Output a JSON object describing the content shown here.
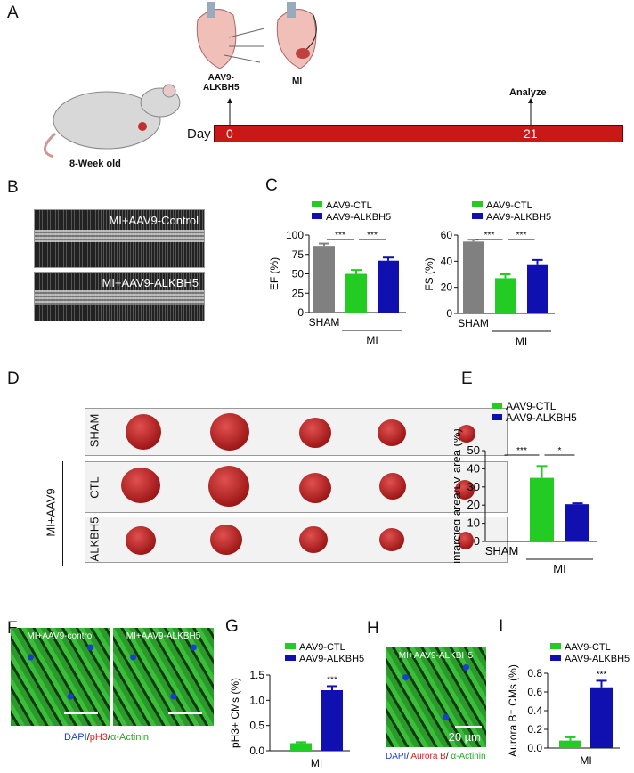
{
  "panels": {
    "A": "A",
    "B": "B",
    "C": "C",
    "D": "D",
    "E": "E",
    "F": "F",
    "G": "G",
    "H": "H",
    "I": "I"
  },
  "panelA": {
    "mouse_label": "8-Week old",
    "injection_label": "AAV9-\nALKBH5",
    "mi_label": "MI",
    "day_label": "Day",
    "day0": "0",
    "day21": "21",
    "analyze": "Analyze",
    "timeline_color": "#c81818"
  },
  "panelB": {
    "top": "MI+AAV9-Control",
    "bottom": "MI+AAV9-ALKBH5"
  },
  "panelD": {
    "rows": [
      "SHAM",
      "CTL",
      "ALKBH5"
    ],
    "group": "MI+AAV9"
  },
  "panelF": {
    "left": "MI+AAV9-control",
    "right": "MI+AAV9-ALKBH5",
    "caption": [
      {
        "t": "DAPI",
        "c": "#1a3fd0"
      },
      {
        "t": "/",
        "c": "#111"
      },
      {
        "t": "pH3",
        "c": "#e02020"
      },
      {
        "t": "/",
        "c": "#111"
      },
      {
        "t": "α-Actinin",
        "c": "#20b020"
      }
    ]
  },
  "panelH": {
    "label": "MI+AAV9-ALKBH5",
    "scale": "20 µm",
    "caption": [
      {
        "t": "DAPI",
        "c": "#1a3fd0"
      },
      {
        "t": "/ ",
        "c": "#111"
      },
      {
        "t": "Aurora B",
        "c": "#e02020"
      },
      {
        "t": "/ ",
        "c": "#111"
      },
      {
        "t": "α-Actinin",
        "c": "#20b020"
      }
    ]
  },
  "colors": {
    "sham": "#808080",
    "ctl": "#22cc22",
    "alkbh5": "#1010b0"
  },
  "chart_data": [
    {
      "id": "EF",
      "type": "bar",
      "ylabel": "EF (%)",
      "ylim": [
        0,
        100
      ],
      "yticks": [
        0,
        25,
        50,
        75,
        100
      ],
      "categories": [
        "SHAM",
        "AAV9-CTL",
        "AAV9-ALKBH5"
      ],
      "values": [
        86,
        50,
        67
      ],
      "errors": [
        3,
        5,
        4
      ],
      "legend": [
        "AAV9-CTL",
        "AAV9-ALKBH5"
      ],
      "xlabels": {
        "sham": "SHAM",
        "group": "MI"
      },
      "sig": [
        "***",
        "***"
      ]
    },
    {
      "id": "FS",
      "type": "bar",
      "ylabel": "FS (%)",
      "ylim": [
        0,
        60
      ],
      "yticks": [
        0,
        20,
        40,
        60
      ],
      "categories": [
        "SHAM",
        "AAV9-CTL",
        "AAV9-ALKBH5"
      ],
      "values": [
        55,
        27,
        37
      ],
      "errors": [
        1.5,
        3,
        4
      ],
      "legend": [
        "AAV9-CTL",
        "AAV9-ALKBH5"
      ],
      "xlabels": {
        "sham": "SHAM",
        "group": "MI"
      },
      "sig": [
        "***",
        "***"
      ]
    },
    {
      "id": "E",
      "type": "bar",
      "ylabel": "infarcted area/LV area (%)",
      "ylim": [
        0,
        50
      ],
      "yticks": [
        0,
        10,
        20,
        30,
        40,
        50
      ],
      "categories": [
        "SHAM",
        "AAV9-CTL",
        "AAV9-ALKBH5"
      ],
      "values": [
        0,
        35,
        20.5
      ],
      "errors": [
        0,
        6.5,
        0.5
      ],
      "legend": [
        "AAV9-CTL",
        "AAV9-ALKBH5"
      ],
      "xlabels": {
        "sham": "SHAM",
        "group": "MI"
      },
      "sig": [
        "***",
        "*"
      ]
    },
    {
      "id": "G",
      "type": "bar",
      "ylabel": "pH3+ CMs (%)",
      "ylim": [
        0,
        1.5
      ],
      "yticks": [
        "0.0",
        "0.5",
        "1.0",
        "1.5"
      ],
      "categories": [
        "AAV9-CTL",
        "AAV9-ALKBH5"
      ],
      "values": [
        0.15,
        1.2
      ],
      "errors": [
        0.02,
        0.08
      ],
      "legend": [
        "AAV9-CTL",
        "AAV9-ALKBH5"
      ],
      "xlabels": {
        "group": "MI"
      },
      "sig": [
        "***"
      ]
    },
    {
      "id": "I",
      "type": "bar",
      "ylabel": "Aurora B⁺ CMs (%)",
      "ylim": [
        0,
        0.8
      ],
      "yticks": [
        "0.0",
        "0.2",
        "0.4",
        "0.6",
        "0.8"
      ],
      "categories": [
        "AAV9-CTL",
        "AAV9-ALKBH5"
      ],
      "values": [
        0.08,
        0.65
      ],
      "errors": [
        0.035,
        0.07
      ],
      "legend": [
        "AAV9-CTL",
        "AAV9-ALKBH5"
      ],
      "xlabels": {
        "group": "MI"
      },
      "sig": [
        "***"
      ]
    }
  ]
}
